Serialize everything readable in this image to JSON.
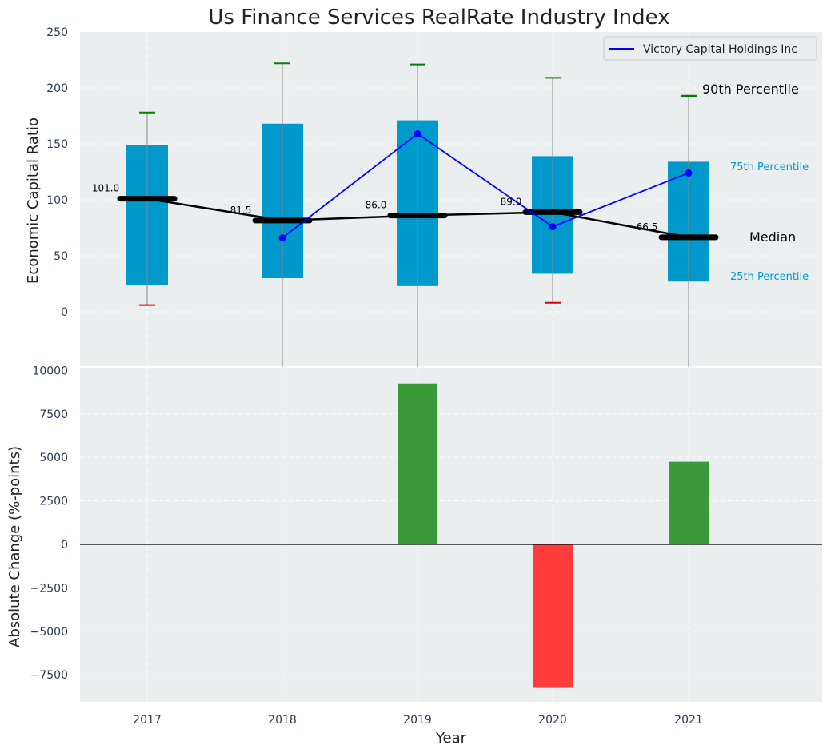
{
  "chart_data": {
    "title": "Us Finance Services RealRate Industry Index",
    "xlabel": "Year",
    "categories": [
      "2017",
      "2018",
      "2019",
      "2020",
      "2021"
    ],
    "top": {
      "type": "box",
      "ylabel": "Economic Capital Ratio",
      "ylim": [
        -50,
        250
      ],
      "yticks": [
        0,
        50,
        100,
        150,
        200,
        250
      ],
      "p10": [
        6,
        -50,
        -50,
        8,
        -50
      ],
      "p25": [
        24,
        30,
        23,
        34,
        27
      ],
      "median": [
        101.0,
        81.5,
        86.0,
        89.0,
        66.5
      ],
      "p75": [
        149,
        168,
        171,
        139,
        134
      ],
      "p90": [
        178,
        222,
        221,
        209,
        193
      ],
      "median_labels": [
        "101.0",
        "81.5",
        "86.0",
        "89.0",
        "66.5"
      ],
      "company": {
        "name": "Victory Capital Holdings Inc",
        "values": [
          null,
          66,
          159,
          76,
          124
        ]
      },
      "annotations": {
        "p90": "90th Percentile",
        "p75": "75th Percentile",
        "median": "Median",
        "p25": "25th Percentile"
      }
    },
    "bottom": {
      "type": "bar",
      "ylabel": "Absolute Change (%-points)",
      "ylim": [
        -9000,
        10000
      ],
      "yticks": [
        -7500,
        -5000,
        -2500,
        0,
        2500,
        5000,
        7500,
        10000
      ],
      "ytick_labels": [
        "−7500",
        "−5000",
        "−2500",
        "0",
        "2500",
        "5000",
        "7500",
        "10000"
      ],
      "values": [
        0,
        0,
        9250,
        -8250,
        4750
      ]
    },
    "legend_position": "top-right",
    "colors": {
      "panel_bg": "#eaeeee",
      "box": "#0099cc",
      "median": "#000000",
      "company": "#0000ff",
      "whisker": "#888888",
      "cap_top": "#008000",
      "cap_bottom": "#e00000",
      "bar_pos": "#3a9a3a",
      "bar_neg": "#ff3b3b",
      "pct_small": "#0099cc",
      "tick": "#2b3a55"
    }
  }
}
